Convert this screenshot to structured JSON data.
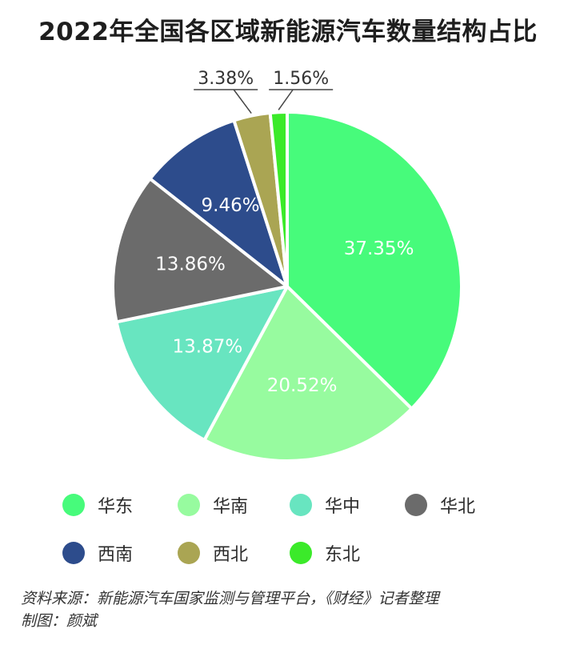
{
  "title": "2022年全国各区域新能源汽车数量结构占比",
  "chart_data": {
    "type": "pie",
    "unit": "%",
    "categories": [
      "华东",
      "华南",
      "华中",
      "华北",
      "西南",
      "西北",
      "东北"
    ],
    "values": [
      37.35,
      20.52,
      13.87,
      13.86,
      9.46,
      3.38,
      1.56
    ],
    "labels": [
      "37.35%",
      "20.52%",
      "13.87%",
      "13.86%",
      "9.46%",
      "3.38%",
      "1.56%"
    ],
    "colors": [
      "#47fb7b",
      "#97fb9f",
      "#68e5c0",
      "#6b6b6b",
      "#2d4c8c",
      "#aaa553",
      "#3bea2a"
    ],
    "legend_position": "bottom",
    "start": "12 o'clock, clockwise"
  },
  "source": {
    "line1": "资料来源：新能源汽车国家监测与管理平台，《财经》记者整理",
    "line2": "制图：颜斌"
  }
}
